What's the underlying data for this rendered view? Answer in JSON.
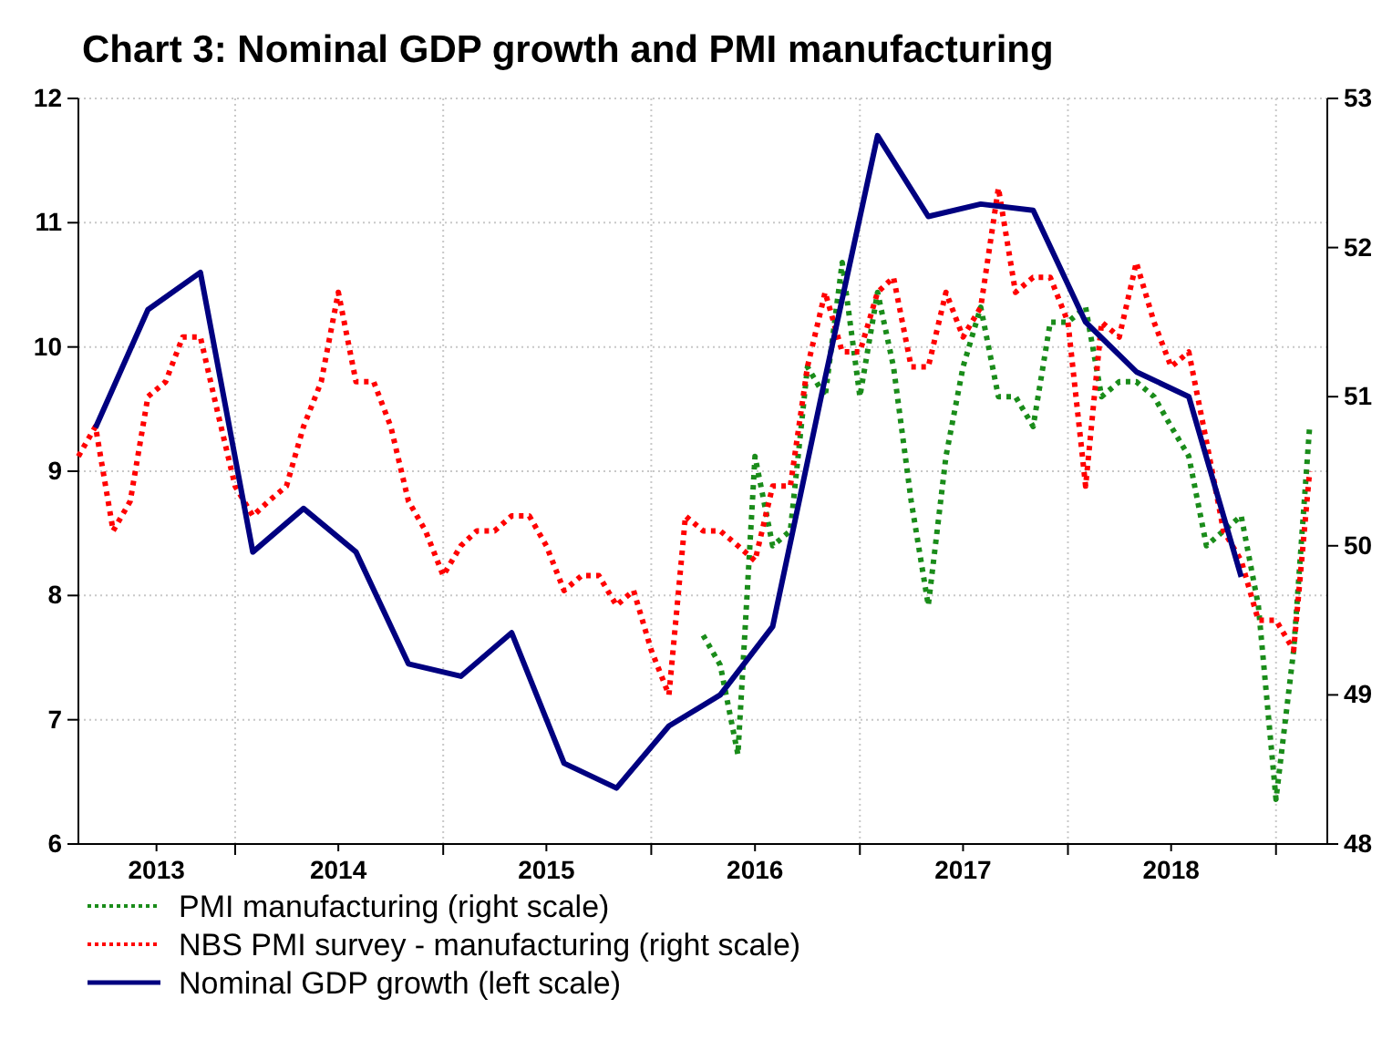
{
  "chart_data": {
    "type": "line",
    "title": "Chart 3: Nominal GDP growth and PMI manufacturing",
    "xlim": [
      "2013-04-01",
      "2019-04-01"
    ],
    "xticks": [
      {
        "value": "2013-08-16",
        "label": "2013"
      },
      {
        "value": "2014-01-01",
        "label": null
      },
      {
        "value": "2014-07-01",
        "label": "2014"
      },
      {
        "value": "2015-01-01",
        "label": null
      },
      {
        "value": "2015-07-01",
        "label": "2015"
      },
      {
        "value": "2016-01-01",
        "label": null
      },
      {
        "value": "2016-07-01",
        "label": "2016"
      },
      {
        "value": "2017-01-01",
        "label": null
      },
      {
        "value": "2017-07-01",
        "label": "2017"
      },
      {
        "value": "2018-01-01",
        "label": null
      },
      {
        "value": "2018-07-01",
        "label": "2018"
      },
      {
        "value": "2019-01-01",
        "label": null
      }
    ],
    "ylim": [
      6,
      12
    ],
    "yticks": [
      6,
      7,
      8,
      9,
      10,
      11,
      12
    ],
    "y2lim": [
      48,
      53
    ],
    "y2ticks": [
      48,
      49,
      50,
      51,
      52,
      53
    ],
    "grid": true,
    "legend": "bottom left",
    "series": [
      {
        "name": "PMI manufacturing (right scale)",
        "color": "#1a8c1a",
        "axis": "y2",
        "line_style": "dotted",
        "x": [
          "2016-04",
          "2016-05",
          "2016-06",
          "2016-07",
          "2016-08",
          "2016-09",
          "2016-10",
          "2016-11",
          "2016-12",
          "2017-01",
          "2017-02",
          "2017-03",
          "2017-04",
          "2017-05",
          "2017-06",
          "2017-07",
          "2017-08",
          "2017-09",
          "2017-10",
          "2017-11",
          "2017-12",
          "2018-01",
          "2018-02",
          "2018-03",
          "2018-04",
          "2018-05",
          "2018-06",
          "2018-07",
          "2018-08",
          "2018-09",
          "2018-10",
          "2018-11",
          "2018-12",
          "2019-01",
          "2019-02",
          "2019-03"
        ],
        "values": [
          49.4,
          49.2,
          48.6,
          50.6,
          50.0,
          50.1,
          51.2,
          51.0,
          51.9,
          51.0,
          51.7,
          51.2,
          50.3,
          49.6,
          50.6,
          51.2,
          51.6,
          51.0,
          51.0,
          50.8,
          51.5,
          51.5,
          51.6,
          51.0,
          51.1,
          51.1,
          51.0,
          50.8,
          50.6,
          50.0,
          50.1,
          50.2,
          49.6,
          48.3,
          49.3,
          50.8
        ]
      },
      {
        "name": "NBS PMI survey - manufacturing (right scale)",
        "color": "#ff0000",
        "axis": "y2",
        "line_style": "dotted",
        "x": [
          "2013-04",
          "2013-05",
          "2013-06",
          "2013-07",
          "2013-08",
          "2013-09",
          "2013-10",
          "2013-11",
          "2013-12",
          "2014-01",
          "2014-02",
          "2014-03",
          "2014-04",
          "2014-05",
          "2014-06",
          "2014-07",
          "2014-08",
          "2014-09",
          "2014-10",
          "2014-11",
          "2014-12",
          "2015-01",
          "2015-02",
          "2015-03",
          "2015-04",
          "2015-05",
          "2015-06",
          "2015-07",
          "2015-08",
          "2015-09",
          "2015-10",
          "2015-11",
          "2015-12",
          "2016-01",
          "2016-02",
          "2016-03",
          "2016-04",
          "2016-05",
          "2016-06",
          "2016-07",
          "2016-08",
          "2016-09",
          "2016-10",
          "2016-11",
          "2016-12",
          "2017-01",
          "2017-02",
          "2017-03",
          "2017-04",
          "2017-05",
          "2017-06",
          "2017-07",
          "2017-08",
          "2017-09",
          "2017-10",
          "2017-11",
          "2017-12",
          "2018-01",
          "2018-02",
          "2018-03",
          "2018-04",
          "2018-05",
          "2018-06",
          "2018-07",
          "2018-08",
          "2018-09",
          "2018-10",
          "2018-11",
          "2018-12",
          "2019-01",
          "2019-02",
          "2019-03"
        ],
        "values": [
          50.6,
          50.8,
          50.1,
          50.3,
          51.0,
          51.1,
          51.4,
          51.4,
          50.9,
          50.4,
          50.2,
          50.3,
          50.4,
          50.8,
          51.1,
          51.7,
          51.1,
          51.1,
          50.8,
          50.3,
          50.1,
          49.8,
          50.0,
          50.1,
          50.1,
          50.2,
          50.2,
          50.0,
          49.7,
          49.8,
          49.8,
          49.6,
          49.7,
          49.3,
          49.0,
          50.2,
          50.1,
          50.1,
          50.0,
          49.9,
          50.4,
          50.4,
          51.2,
          51.7,
          51.3,
          51.3,
          51.7,
          51.8,
          51.2,
          51.2,
          51.7,
          51.4,
          51.6,
          52.4,
          51.7,
          51.8,
          51.8,
          51.5,
          50.4,
          51.5,
          51.4,
          51.9,
          51.5,
          51.2,
          51.3,
          50.7,
          50.1,
          49.9,
          49.5,
          49.5,
          49.3,
          50.5
        ]
      },
      {
        "name": "Nominal GDP growth (left scale)",
        "color": "#000080",
        "line_style": "solid",
        "x": [
          "2013-05",
          "2013-08",
          "2013-11",
          "2014-02",
          "2014-05",
          "2014-08",
          "2014-11",
          "2015-02",
          "2015-05",
          "2015-08",
          "2015-11",
          "2016-02",
          "2016-05",
          "2016-08",
          "2016-11",
          "2017-02",
          "2017-05",
          "2017-08",
          "2017-11",
          "2018-02",
          "2018-05",
          "2018-08",
          "2018-11"
        ],
        "values": [
          9.35,
          10.3,
          10.6,
          8.35,
          8.7,
          8.35,
          7.45,
          7.35,
          7.7,
          6.65,
          6.45,
          6.95,
          7.2,
          7.75,
          9.75,
          11.7,
          11.05,
          11.15,
          11.1,
          10.2,
          9.8,
          9.6,
          8.15
        ]
      }
    ]
  }
}
